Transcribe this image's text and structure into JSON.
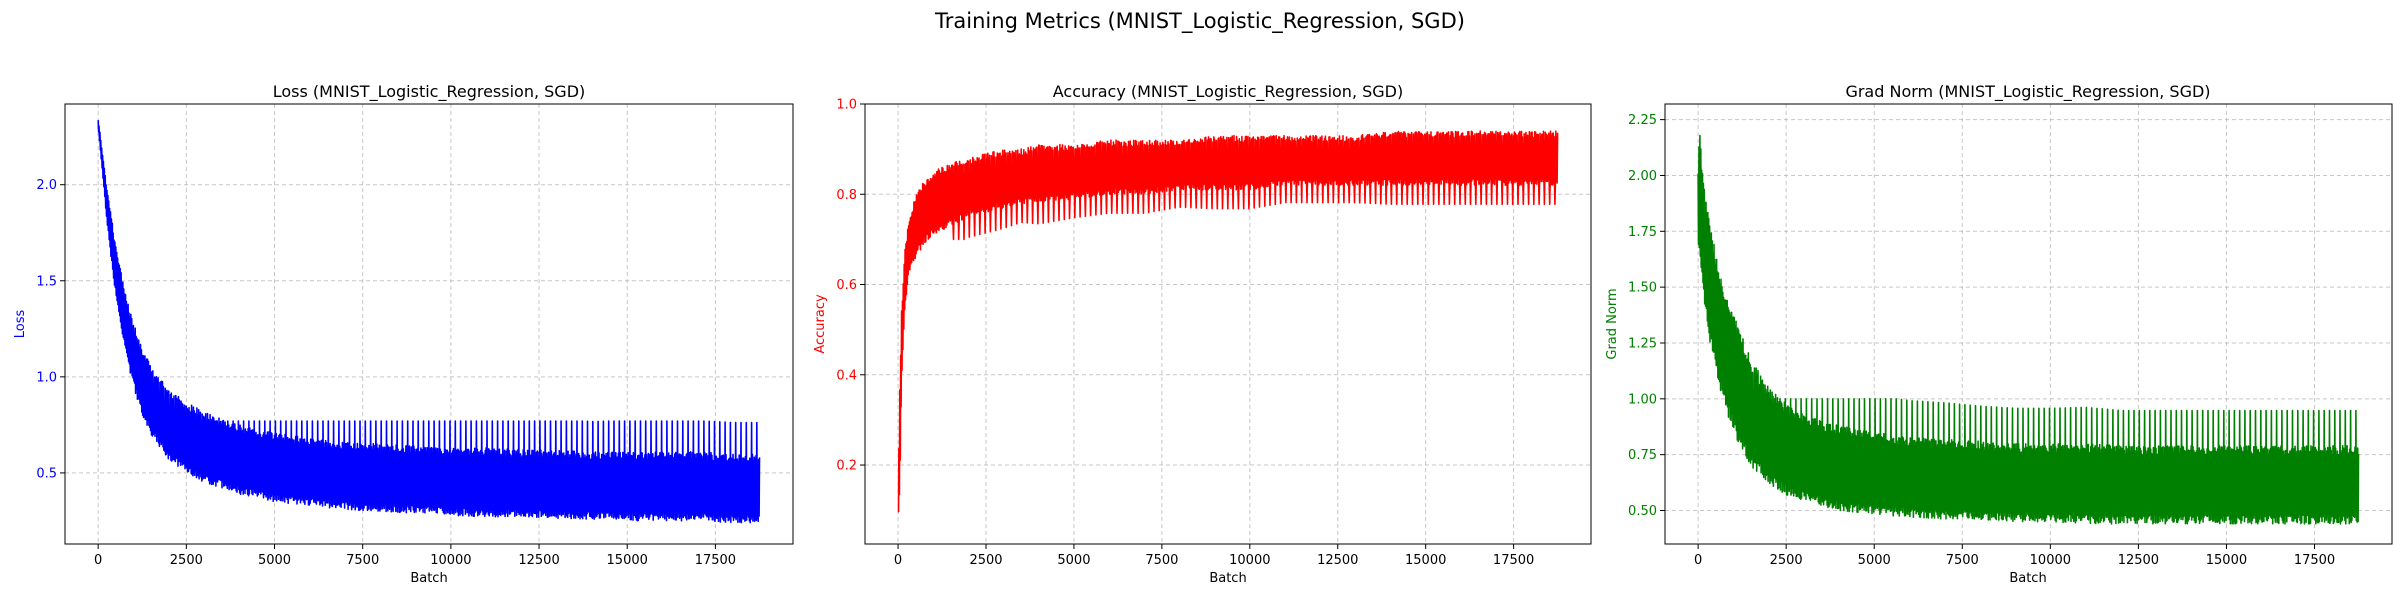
{
  "figure": {
    "suptitle": "Training Metrics (MNIST_Logistic_Regression, SGD)"
  },
  "chart_data": [
    {
      "type": "line",
      "title": "Loss (MNIST_Logistic_Regression, SGD)",
      "xlabel": "Batch",
      "ylabel": "Loss",
      "color": "#0000ff",
      "grid": true,
      "xlim": [
        -940,
        19700
      ],
      "ylim": [
        0.13,
        2.42
      ],
      "xticks": [
        0,
        2500,
        5000,
        7500,
        10000,
        12500,
        15000,
        17500
      ],
      "xtick_labels": [
        "0",
        "2500",
        "5000",
        "7500",
        "10000",
        "12500",
        "15000",
        "17500"
      ],
      "yticks": [
        0.5,
        1.0,
        1.5,
        2.0
      ],
      "ytick_labels": [
        "0.5",
        "1.0",
        "1.5",
        "2.0"
      ],
      "x": [
        0,
        50,
        100,
        200,
        300,
        500,
        750,
        1000,
        1250,
        1500,
        2000,
        2500,
        3000,
        3500,
        4000,
        5000,
        6000,
        7000,
        8000,
        9000,
        10000,
        11000,
        12000,
        13000,
        14000,
        15000,
        16000,
        17000,
        18000,
        18750
      ],
      "upper": [
        2.34,
        2.28,
        2.2,
        2.05,
        1.92,
        1.68,
        1.45,
        1.28,
        1.15,
        1.06,
        0.93,
        0.87,
        0.82,
        0.78,
        0.75,
        0.71,
        0.68,
        0.66,
        0.65,
        0.64,
        0.63,
        0.63,
        0.62,
        0.62,
        0.61,
        0.61,
        0.61,
        0.61,
        0.6,
        0.6
      ],
      "lower": [
        2.3,
        2.2,
        2.1,
        1.9,
        1.72,
        1.42,
        1.15,
        0.95,
        0.8,
        0.7,
        0.57,
        0.5,
        0.45,
        0.42,
        0.39,
        0.35,
        0.33,
        0.31,
        0.3,
        0.29,
        0.28,
        0.27,
        0.27,
        0.26,
        0.26,
        0.25,
        0.25,
        0.25,
        0.24,
        0.24
      ],
      "spike_top": 0.77
    },
    {
      "type": "line",
      "title": "Accuracy (MNIST_Logistic_Regression, SGD)",
      "xlabel": "Batch",
      "ylabel": "Accuracy",
      "color": "#ff0000",
      "grid": true,
      "xlim": [
        -940,
        19700
      ],
      "ylim": [
        0.025,
        1.0
      ],
      "xticks": [
        0,
        2500,
        5000,
        7500,
        10000,
        12500,
        15000,
        17500
      ],
      "xtick_labels": [
        "0",
        "2500",
        "5000",
        "7500",
        "10000",
        "12500",
        "15000",
        "17500"
      ],
      "yticks": [
        0.2,
        0.4,
        0.6,
        0.8,
        1.0
      ],
      "ytick_labels": [
        "0.2",
        "0.4",
        "0.6",
        "0.8",
        "1.0"
      ],
      "x": [
        0,
        50,
        100,
        200,
        300,
        500,
        750,
        1000,
        1250,
        1500,
        2000,
        2500,
        3000,
        3500,
        4000,
        5000,
        6000,
        7000,
        8000,
        9000,
        10000,
        11000,
        12000,
        13000,
        14000,
        15000,
        16000,
        17000,
        18000,
        18750
      ],
      "upper": [
        0.1,
        0.38,
        0.55,
        0.68,
        0.74,
        0.8,
        0.83,
        0.85,
        0.86,
        0.87,
        0.88,
        0.89,
        0.9,
        0.9,
        0.91,
        0.91,
        0.92,
        0.92,
        0.92,
        0.93,
        0.93,
        0.93,
        0.93,
        0.93,
        0.94,
        0.94,
        0.94,
        0.94,
        0.94,
        0.94
      ],
      "lower": [
        0.07,
        0.15,
        0.38,
        0.55,
        0.62,
        0.66,
        0.69,
        0.71,
        0.72,
        0.73,
        0.75,
        0.76,
        0.77,
        0.78,
        0.78,
        0.79,
        0.8,
        0.8,
        0.81,
        0.81,
        0.81,
        0.82,
        0.82,
        0.82,
        0.82,
        0.82,
        0.82,
        0.82,
        0.82,
        0.82
      ],
      "spike_bottom": 0.7
    },
    {
      "type": "line",
      "title": "Grad Norm (MNIST_Logistic_Regression, SGD)",
      "xlabel": "Batch",
      "ylabel": "Grad Norm",
      "color": "#008000",
      "grid": true,
      "xlim": [
        -940,
        19700
      ],
      "ylim": [
        0.35,
        2.32
      ],
      "xticks": [
        0,
        2500,
        5000,
        7500,
        10000,
        12500,
        15000,
        17500
      ],
      "xtick_labels": [
        "0",
        "2500",
        "5000",
        "7500",
        "10000",
        "12500",
        "15000",
        "17500"
      ],
      "yticks": [
        0.5,
        0.75,
        1.0,
        1.25,
        1.5,
        1.75,
        2.0,
        2.25
      ],
      "ytick_labels": [
        "0.50",
        "0.75",
        "1.00",
        "1.25",
        "1.50",
        "1.75",
        "2.00",
        "2.25"
      ],
      "x": [
        0,
        50,
        100,
        200,
        300,
        500,
        750,
        1000,
        1250,
        1500,
        2000,
        2500,
        3000,
        3500,
        4000,
        5000,
        6000,
        7000,
        8000,
        9000,
        10000,
        11000,
        12000,
        13000,
        14000,
        15000,
        16000,
        17000,
        18000,
        18750
      ],
      "upper": [
        2.05,
        2.23,
        2.05,
        1.9,
        1.82,
        1.65,
        1.5,
        1.4,
        1.28,
        1.18,
        1.05,
        0.98,
        0.93,
        0.9,
        0.88,
        0.85,
        0.83,
        0.82,
        0.81,
        0.8,
        0.8,
        0.8,
        0.79,
        0.79,
        0.79,
        0.79,
        0.79,
        0.79,
        0.79,
        0.79
      ],
      "lower": [
        1.7,
        1.65,
        1.55,
        1.4,
        1.28,
        1.12,
        0.97,
        0.85,
        0.77,
        0.7,
        0.62,
        0.57,
        0.54,
        0.52,
        0.5,
        0.48,
        0.47,
        0.46,
        0.46,
        0.45,
        0.45,
        0.44,
        0.44,
        0.44,
        0.44,
        0.44,
        0.44,
        0.44,
        0.44,
        0.44
      ],
      "spike_top": 1.0
    }
  ]
}
